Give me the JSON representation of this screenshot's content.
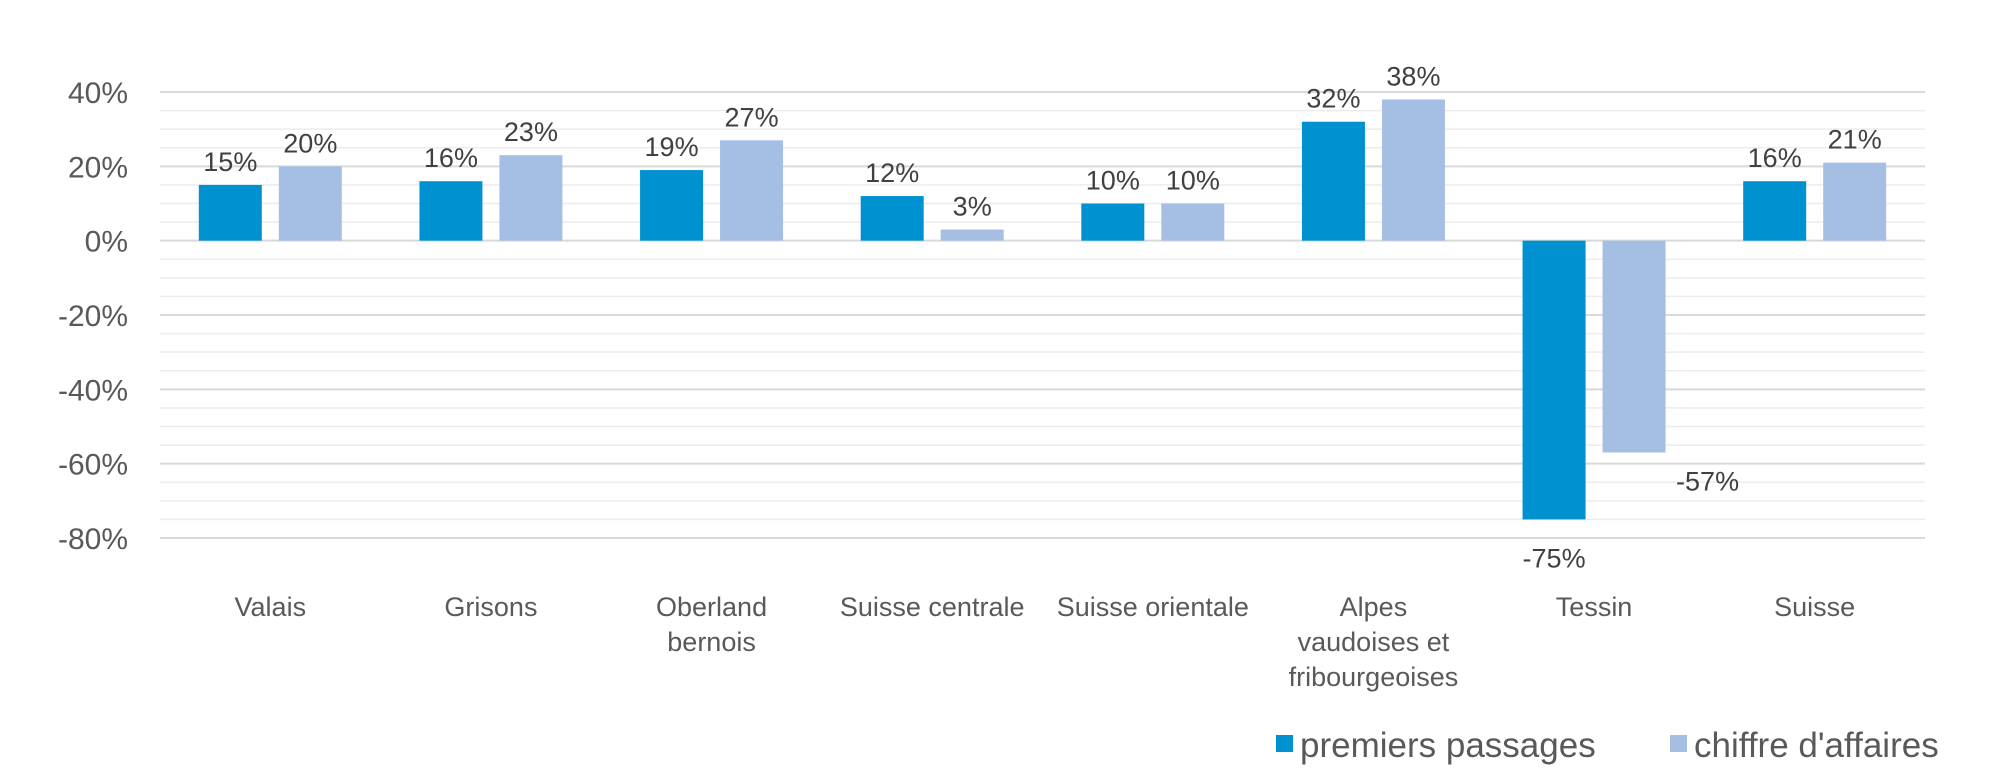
{
  "chart_data": {
    "type": "bar",
    "title": "",
    "xlabel": "",
    "ylabel": "",
    "ylim": [
      -80,
      40
    ],
    "y_ticks": [
      40,
      20,
      0,
      -20,
      -40,
      -60,
      -80
    ],
    "y_tick_format": "percent",
    "minor_grid_step": 5,
    "grid": true,
    "legend_position": "bottom-right",
    "categories": [
      [
        "Valais"
      ],
      [
        "Grisons"
      ],
      [
        "Oberland",
        "bernois"
      ],
      [
        "Suisse centrale"
      ],
      [
        "Suisse orientale"
      ],
      [
        "Alpes",
        "vaudoises et",
        "fribourgeoises"
      ],
      [
        "Tessin"
      ],
      [
        "Suisse"
      ]
    ],
    "series": [
      {
        "name": "premiers passages",
        "color": "#0092d0",
        "values": [
          15,
          16,
          19,
          12,
          10,
          32,
          -75,
          16
        ],
        "labels": [
          "15%",
          "16%",
          "19%",
          "12%",
          "10%",
          "32%",
          "-75%",
          "16%"
        ]
      },
      {
        "name": "chiffre d'affaires",
        "color": "#a4bfe3",
        "values": [
          20,
          23,
          27,
          3,
          10,
          38,
          -57,
          21
        ],
        "labels": [
          "20%",
          "23%",
          "27%",
          "3%",
          "10%",
          "38%",
          "-57%",
          "21%"
        ]
      }
    ]
  }
}
